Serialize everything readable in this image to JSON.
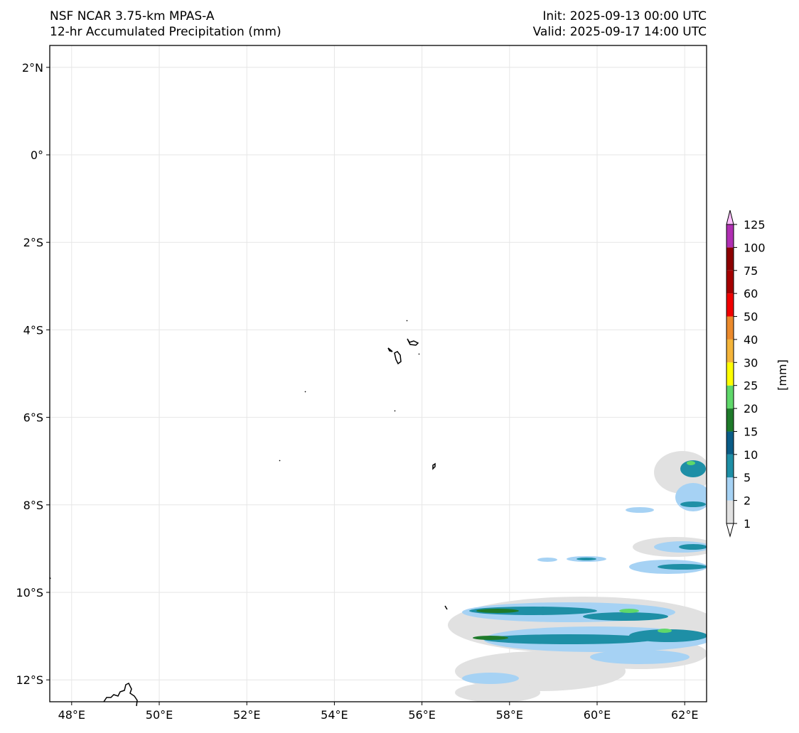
{
  "header": {
    "model": "NSF NCAR 3.75-km MPAS-A",
    "field": "12-hr Accumulated Precipitation (mm)",
    "init": "Init: 2025-09-13 00:00 UTC",
    "valid": "Valid: 2025-09-17 14:00 UTC"
  },
  "map": {
    "lon_range": [
      47.5,
      62.5
    ],
    "lat_range": [
      -12.5,
      2.5
    ],
    "lon_ticks": [
      "48°E",
      "50°E",
      "52°E",
      "54°E",
      "56°E",
      "58°E",
      "60°E",
      "62°E"
    ],
    "lat_ticks": [
      "2°N",
      "0°",
      "2°S",
      "4°S",
      "6°S",
      "8°S",
      "10°S",
      "12°S"
    ],
    "gridlines": true
  },
  "colorbar": {
    "unit_label": "[mm]",
    "levels": [
      "1",
      "2",
      "5",
      "10",
      "15",
      "20",
      "25",
      "30",
      "40",
      "50",
      "60",
      "75",
      "100",
      "125"
    ],
    "colors": [
      "#e1e1e1",
      "#a6d2f4",
      "#1e8fa6",
      "#0a5c86",
      "#1e7a2a",
      "#5fd86a",
      "#ffff00",
      "#f4b43a",
      "#eb8a2c",
      "#f00000",
      "#a50000",
      "#8c0000",
      "#b02fb2",
      "#ffc0ff"
    ]
  }
}
